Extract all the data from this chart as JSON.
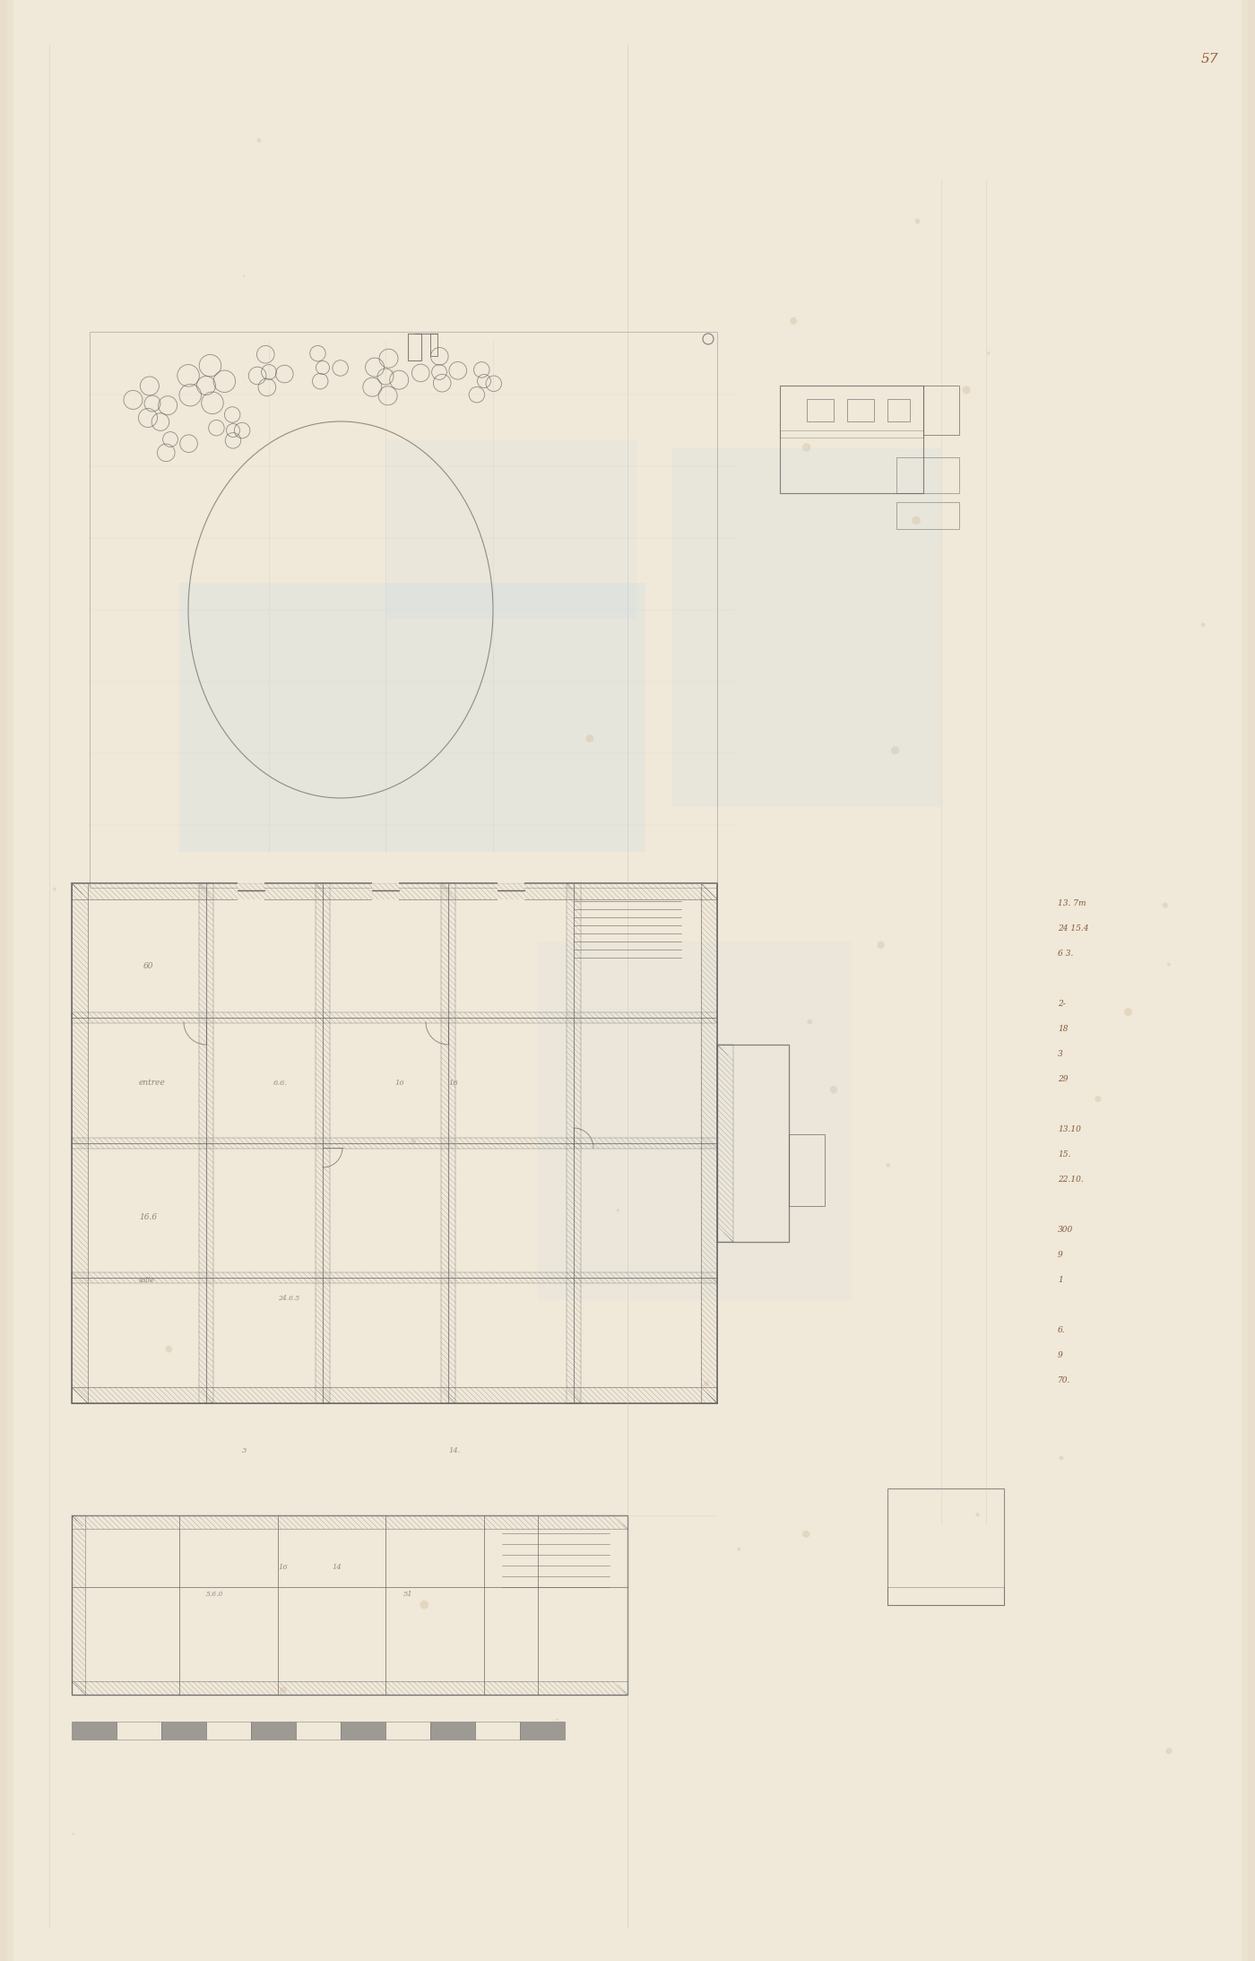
{
  "bg_color": "#f0e8d8",
  "paper_color": "#ede0c8",
  "line_color": "#555555",
  "light_line_color": "#999999",
  "very_light_line": "#bbbbbb",
  "pencil_color": "#666666",
  "blue_wash": "#c8dde8",
  "page_number": "57",
  "figsize": [
    14.0,
    21.87
  ],
  "dpi": 100,
  "notes_right": [
    "13. 7m",
    "24 15.4",
    "6 3.",
    "",
    "2-",
    "18",
    "3",
    "29",
    "",
    "13.10",
    "15.",
    "22.10.",
    "",
    "300",
    "9",
    "1",
    "",
    "6.",
    "9",
    "70."
  ]
}
